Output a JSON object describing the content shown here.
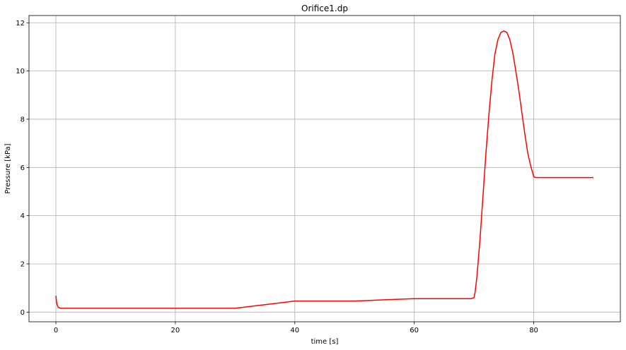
{
  "chart_data": {
    "type": "line",
    "title": "Orifice1.dp",
    "xlabel": "time [s]",
    "ylabel": "Pressure [kPa]",
    "xlim": [
      -4.5,
      94.5
    ],
    "ylim": [
      -0.4,
      12.3
    ],
    "xticks": [
      0,
      20,
      40,
      60,
      80
    ],
    "yticks": [
      0,
      2,
      4,
      6,
      8,
      10,
      12
    ],
    "grid": true,
    "series": [
      {
        "color": "#ff0000",
        "x": [
          0,
          0.1,
          0.2,
          0.4,
          0.7,
          1,
          5,
          10,
          20,
          30,
          35,
          40,
          45,
          50,
          55,
          60,
          65,
          69.5,
          70,
          70.2,
          70.5,
          71,
          71.5,
          72,
          72.5,
          73,
          73.5,
          74,
          74.5,
          75,
          75.5,
          76,
          76.5,
          77,
          77.5,
          78,
          78.5,
          79,
          79.5,
          79.8,
          80,
          80.2,
          80.5,
          81,
          85,
          90
        ],
        "y": [
          0.68,
          0.45,
          0.3,
          0.2,
          0.17,
          0.16,
          0.16,
          0.16,
          0.16,
          0.16,
          0.31,
          0.46,
          0.46,
          0.46,
          0.51,
          0.56,
          0.56,
          0.56,
          0.6,
          0.85,
          1.5,
          3.0,
          4.8,
          6.6,
          8.2,
          9.6,
          10.7,
          11.3,
          11.6,
          11.66,
          11.6,
          11.3,
          10.75,
          10.0,
          9.2,
          8.3,
          7.4,
          6.6,
          6.05,
          5.8,
          5.62,
          5.59,
          5.58,
          5.58,
          5.58,
          5.58
        ]
      }
    ]
  }
}
